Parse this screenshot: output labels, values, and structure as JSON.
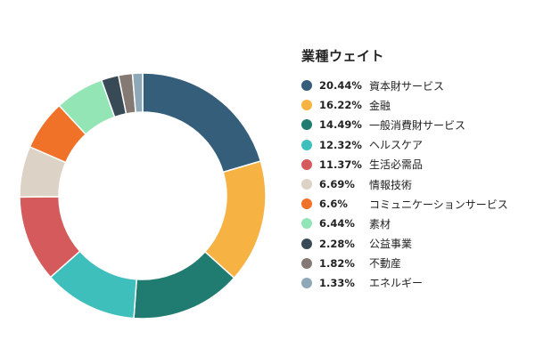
{
  "chart_data": {
    "type": "pie",
    "title": "業種ウェイト",
    "legend_position": "right",
    "categories": [
      "資本財サービス",
      "金融",
      "一般消費財サービス",
      "ヘルスケア",
      "生活必需品",
      "情報技術",
      "コミュニケーションサービス",
      "素材",
      "公益事業",
      "不動産",
      "エネルギー"
    ],
    "values": [
      20.44,
      16.22,
      14.49,
      12.32,
      11.37,
      6.69,
      6.6,
      6.44,
      2.28,
      1.82,
      1.33
    ],
    "labels": [
      "20.44%",
      "16.22%",
      "14.49%",
      "12.32%",
      "11.37%",
      "6.69%",
      "6.6%",
      "6.44%",
      "2.28%",
      "1.82%",
      "1.33%"
    ],
    "colors": [
      "#355e7a",
      "#f6b243",
      "#207c70",
      "#3ebfbc",
      "#d55a5b",
      "#dcd2c6",
      "#f07128",
      "#93e5b6",
      "#394a57",
      "#857a73",
      "#8ea8b8"
    ]
  }
}
